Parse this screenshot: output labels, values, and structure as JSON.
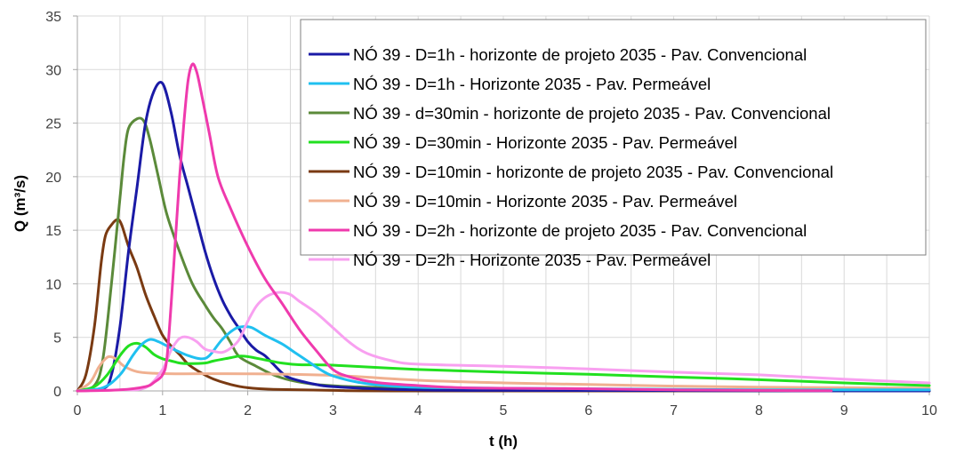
{
  "chart_data": {
    "type": "line",
    "title": "",
    "xlabel": "t (h)",
    "ylabel": "Q (m³/s)",
    "xlim": [
      0,
      10
    ],
    "ylim": [
      0,
      35
    ],
    "x_ticks": [
      "0",
      "1",
      "2",
      "3",
      "4",
      "5",
      "6",
      "7",
      "8",
      "9",
      "10"
    ],
    "y_ticks": [
      "0",
      "5",
      "10",
      "15",
      "20",
      "25",
      "30",
      "35"
    ],
    "grid": true,
    "legend_position": "top-right",
    "series": [
      {
        "name": "NÓ 39 - D=1h - horizonte de projeto 2035 - Pav. Convencional",
        "color": "#1a1aa6",
        "points": [
          [
            0.0,
            0
          ],
          [
            0.3,
            0.2
          ],
          [
            0.4,
            1.5
          ],
          [
            0.5,
            6
          ],
          [
            0.6,
            13
          ],
          [
            0.7,
            19
          ],
          [
            0.8,
            25
          ],
          [
            0.9,
            28
          ],
          [
            1.0,
            28.7
          ],
          [
            1.1,
            26
          ],
          [
            1.2,
            22
          ],
          [
            1.3,
            19
          ],
          [
            1.4,
            16
          ],
          [
            1.5,
            13
          ],
          [
            1.6,
            10.5
          ],
          [
            1.7,
            8.5
          ],
          [
            1.8,
            7
          ],
          [
            1.9,
            5.8
          ],
          [
            2.0,
            4.6
          ],
          [
            2.1,
            3.8
          ],
          [
            2.2,
            3.3
          ],
          [
            2.3,
            2.5
          ],
          [
            2.4,
            1.7
          ],
          [
            2.5,
            1.2
          ],
          [
            2.8,
            0.6
          ],
          [
            3.0,
            0.4
          ],
          [
            3.5,
            0.2
          ],
          [
            4.0,
            0.1
          ],
          [
            5.0,
            0.05
          ],
          [
            10.0,
            0
          ]
        ]
      },
      {
        "name": "NÓ 39 - D=1h - Horizonte 2035 - Pav. Permeável",
        "color": "#20c0f0",
        "points": [
          [
            0.0,
            0
          ],
          [
            0.3,
            0.3
          ],
          [
            0.5,
            1.5
          ],
          [
            0.65,
            3.3
          ],
          [
            0.75,
            4.3
          ],
          [
            0.85,
            4.8
          ],
          [
            0.95,
            4.6
          ],
          [
            1.1,
            4.0
          ],
          [
            1.3,
            3.3
          ],
          [
            1.45,
            3.0
          ],
          [
            1.55,
            3.3
          ],
          [
            1.7,
            4.8
          ],
          [
            1.85,
            5.8
          ],
          [
            1.95,
            6.0
          ],
          [
            2.05,
            5.9
          ],
          [
            2.2,
            5.2
          ],
          [
            2.4,
            4.4
          ],
          [
            2.55,
            3.6
          ],
          [
            2.7,
            2.8
          ],
          [
            2.85,
            2.0
          ],
          [
            3.0,
            1.4
          ],
          [
            3.3,
            0.8
          ],
          [
            3.7,
            0.45
          ],
          [
            4.2,
            0.3
          ],
          [
            5.0,
            0.25
          ],
          [
            6.0,
            0.2
          ],
          [
            7.0,
            0.15
          ],
          [
            8.0,
            0.1
          ],
          [
            9.0,
            0.1
          ],
          [
            10.0,
            0.1
          ]
        ]
      },
      {
        "name": "NÓ 39 - d=30min - horizonte de projeto 2035 - Pav. Convencional",
        "color": "#5b8a3a",
        "points": [
          [
            0.0,
            0
          ],
          [
            0.2,
            0.5
          ],
          [
            0.3,
            3
          ],
          [
            0.4,
            10
          ],
          [
            0.5,
            18
          ],
          [
            0.55,
            22
          ],
          [
            0.6,
            24.5
          ],
          [
            0.7,
            25.4
          ],
          [
            0.78,
            25.2
          ],
          [
            0.85,
            23.5
          ],
          [
            0.95,
            20
          ],
          [
            1.05,
            16.5
          ],
          [
            1.2,
            13
          ],
          [
            1.35,
            10
          ],
          [
            1.5,
            8
          ],
          [
            1.6,
            6.8
          ],
          [
            1.7,
            5.8
          ],
          [
            1.8,
            4.5
          ],
          [
            1.9,
            3.2
          ],
          [
            2.1,
            2.3
          ],
          [
            2.3,
            1.5
          ],
          [
            2.5,
            1.0
          ],
          [
            2.8,
            0.6
          ],
          [
            3.2,
            0.4
          ],
          [
            3.6,
            0.3
          ],
          [
            4.0,
            0.2
          ],
          [
            5.0,
            0.1
          ],
          [
            6.0,
            0.05
          ],
          [
            10.0,
            0
          ]
        ]
      },
      {
        "name": "NÓ 39 - D=30min - Horizonte 2035 - Pav. Permeável",
        "color": "#22e020",
        "points": [
          [
            0.0,
            0
          ],
          [
            0.2,
            0.4
          ],
          [
            0.35,
            1.5
          ],
          [
            0.5,
            3.3
          ],
          [
            0.6,
            4.2
          ],
          [
            0.7,
            4.45
          ],
          [
            0.8,
            4.1
          ],
          [
            0.9,
            3.4
          ],
          [
            1.0,
            3.0
          ],
          [
            1.1,
            2.8
          ],
          [
            1.2,
            2.6
          ],
          [
            1.3,
            2.55
          ],
          [
            1.5,
            2.6
          ],
          [
            1.6,
            2.8
          ],
          [
            1.8,
            3.1
          ],
          [
            1.9,
            3.25
          ],
          [
            2.0,
            3.2
          ],
          [
            2.2,
            2.9
          ],
          [
            2.4,
            2.6
          ],
          [
            2.6,
            2.45
          ],
          [
            3.0,
            2.4
          ],
          [
            4.0,
            2.0
          ],
          [
            5.0,
            1.75
          ],
          [
            6.0,
            1.55
          ],
          [
            7.0,
            1.3
          ],
          [
            8.0,
            1.05
          ],
          [
            9.0,
            0.75
          ],
          [
            10.0,
            0.5
          ]
        ]
      },
      {
        "name": "NÓ 39 - D=10min - horizonte de projeto 2035 - Pav. Convencional",
        "color": "#7a3a12",
        "points": [
          [
            0.0,
            0
          ],
          [
            0.1,
            1.5
          ],
          [
            0.2,
            6
          ],
          [
            0.28,
            12
          ],
          [
            0.33,
            14.5
          ],
          [
            0.4,
            15.5
          ],
          [
            0.47,
            16
          ],
          [
            0.52,
            15.5
          ],
          [
            0.6,
            13.5
          ],
          [
            0.7,
            11.5
          ],
          [
            0.8,
            9
          ],
          [
            0.9,
            7
          ],
          [
            1.0,
            5.2
          ],
          [
            1.1,
            4.2
          ],
          [
            1.2,
            3.4
          ],
          [
            1.3,
            2.5
          ],
          [
            1.45,
            1.7
          ],
          [
            1.6,
            1.1
          ],
          [
            1.8,
            0.6
          ],
          [
            2.0,
            0.3
          ],
          [
            2.3,
            0.15
          ],
          [
            3.0,
            0.05
          ],
          [
            4.0,
            0
          ],
          [
            10.0,
            0
          ]
        ]
      },
      {
        "name": "NÓ 39 - D=10min - Horizonte 2035 - Pav. Permeável",
        "color": "#f0b090",
        "points": [
          [
            0.0,
            0
          ],
          [
            0.15,
            0.8
          ],
          [
            0.25,
            2.2
          ],
          [
            0.33,
            3.0
          ],
          [
            0.38,
            3.2
          ],
          [
            0.45,
            3.0
          ],
          [
            0.55,
            2.3
          ],
          [
            0.7,
            1.8
          ],
          [
            0.9,
            1.65
          ],
          [
            1.2,
            1.6
          ],
          [
            2.0,
            1.6
          ],
          [
            3.0,
            1.45
          ],
          [
            4.0,
            1.0
          ],
          [
            5.0,
            0.75
          ],
          [
            6.0,
            0.6
          ],
          [
            7.0,
            0.45
          ],
          [
            8.0,
            0.35
          ],
          [
            9.0,
            0.3
          ],
          [
            10.0,
            0.25
          ]
        ]
      },
      {
        "name": "NÓ 39 - D=2h - horizonte de projeto 2035 - Pav. Convencional",
        "color": "#ef3aad",
        "points": [
          [
            0.0,
            0
          ],
          [
            0.5,
            0.1
          ],
          [
            0.8,
            0.4
          ],
          [
            0.9,
            0.8
          ],
          [
            1.0,
            1.5
          ],
          [
            1.05,
            3
          ],
          [
            1.1,
            8
          ],
          [
            1.15,
            14
          ],
          [
            1.2,
            20
          ],
          [
            1.25,
            25
          ],
          [
            1.3,
            29
          ],
          [
            1.35,
            30.5
          ],
          [
            1.4,
            29.8
          ],
          [
            1.45,
            28
          ],
          [
            1.55,
            24
          ],
          [
            1.65,
            20
          ],
          [
            1.8,
            17
          ],
          [
            2.0,
            13.5
          ],
          [
            2.2,
            10.5
          ],
          [
            2.4,
            8.2
          ],
          [
            2.6,
            5.8
          ],
          [
            2.8,
            3.8
          ],
          [
            3.0,
            2.0
          ],
          [
            3.2,
            1.3
          ],
          [
            3.5,
            0.8
          ],
          [
            4.0,
            0.5
          ],
          [
            4.5,
            0.3
          ],
          [
            5.0,
            0.25
          ],
          [
            6.0,
            0.2
          ],
          [
            7.0,
            0.1
          ],
          [
            8.0,
            0.05
          ],
          [
            8.85,
            0.02
          ]
        ]
      },
      {
        "name": "NÓ 39 - D=2h - Horizonte 2035 - Pav. Permeável",
        "color": "#f8a0f0",
        "points": [
          [
            0.0,
            0
          ],
          [
            0.5,
            0.1
          ],
          [
            0.8,
            0.3
          ],
          [
            1.0,
            2.0
          ],
          [
            1.1,
            3.8
          ],
          [
            1.2,
            4.9
          ],
          [
            1.3,
            5.0
          ],
          [
            1.4,
            4.6
          ],
          [
            1.5,
            3.9
          ],
          [
            1.6,
            3.7
          ],
          [
            1.7,
            3.6
          ],
          [
            1.8,
            4.0
          ],
          [
            1.9,
            4.8
          ],
          [
            2.0,
            6.5
          ],
          [
            2.1,
            7.9
          ],
          [
            2.2,
            8.7
          ],
          [
            2.3,
            9.1
          ],
          [
            2.4,
            9.2
          ],
          [
            2.5,
            9.0
          ],
          [
            2.6,
            8.4
          ],
          [
            2.8,
            7.3
          ],
          [
            3.0,
            5.9
          ],
          [
            3.2,
            4.5
          ],
          [
            3.4,
            3.5
          ],
          [
            3.7,
            2.8
          ],
          [
            4.0,
            2.5
          ],
          [
            5.0,
            2.3
          ],
          [
            6.0,
            2.05
          ],
          [
            7.0,
            1.75
          ],
          [
            8.0,
            1.5
          ],
          [
            9.0,
            1.1
          ],
          [
            10.0,
            0.75
          ]
        ]
      }
    ]
  }
}
